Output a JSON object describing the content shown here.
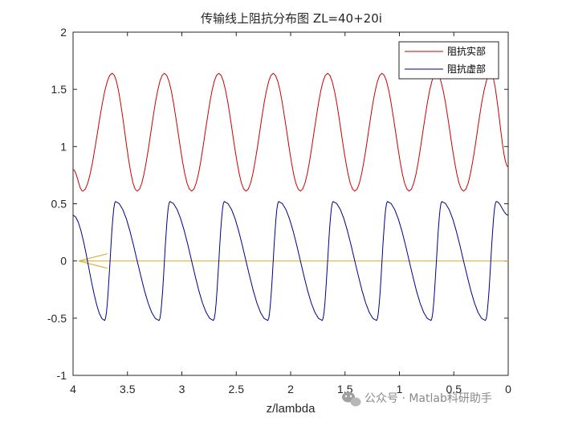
{
  "chart_data": {
    "type": "line",
    "title": "传输线上阻抗分布图  ZL=40+20i",
    "xlabel": "z/lambda",
    "ylabel": "",
    "xlim": [
      4,
      0
    ],
    "x_reversed": true,
    "ylim": [
      -1,
      2
    ],
    "xticks": [
      "4",
      "3.5",
      "3",
      "2.5",
      "2",
      "1.5",
      "1",
      "0.5",
      "0"
    ],
    "yticks": [
      "2",
      "1.5",
      "1",
      "0.5",
      "0",
      "-0.5",
      "-1"
    ],
    "grid": false,
    "legend_position": "top-right",
    "series": [
      {
        "name": "阻抗实部",
        "color": "#cc0000",
        "period": 0.5,
        "max": 1.64,
        "min": 0.61,
        "peaks_at": [
          3.64,
          3.16,
          2.66,
          2.16,
          1.66,
          1.16,
          0.66,
          0.16
        ],
        "valleys_at": [
          3.91,
          3.41,
          2.91,
          2.41,
          1.91,
          1.41,
          0.91,
          0.41
        ],
        "value_at_x0": 0.82,
        "value_at_x4": 0.8
      },
      {
        "name": "阻抗虚部",
        "color": "#00008b",
        "period": 0.5,
        "max": 0.52,
        "min": -0.52,
        "peaks_at": [
          3.61,
          3.11,
          2.61,
          2.11,
          1.61,
          1.11,
          0.61,
          0.11
        ],
        "valleys_at": [
          3.71,
          3.21,
          2.71,
          2.21,
          1.71,
          1.21,
          0.71,
          0.21
        ],
        "value_at_x0": 0.4,
        "value_at_x4": 0.4
      }
    ],
    "annotations": [
      {
        "kind": "zero-line-arrow",
        "color": "#d9b43a",
        "y": 0,
        "from_x": 0,
        "to_x": 3.95
      }
    ]
  },
  "colors": {
    "background": "#ffffff",
    "axes": "#262626",
    "real": "#cc0000",
    "imag": "#00008b",
    "arrow": "#d9b43a"
  },
  "watermark": {
    "text": "公众号 · Matlab科研助手",
    "icon": "wechat-icon"
  }
}
